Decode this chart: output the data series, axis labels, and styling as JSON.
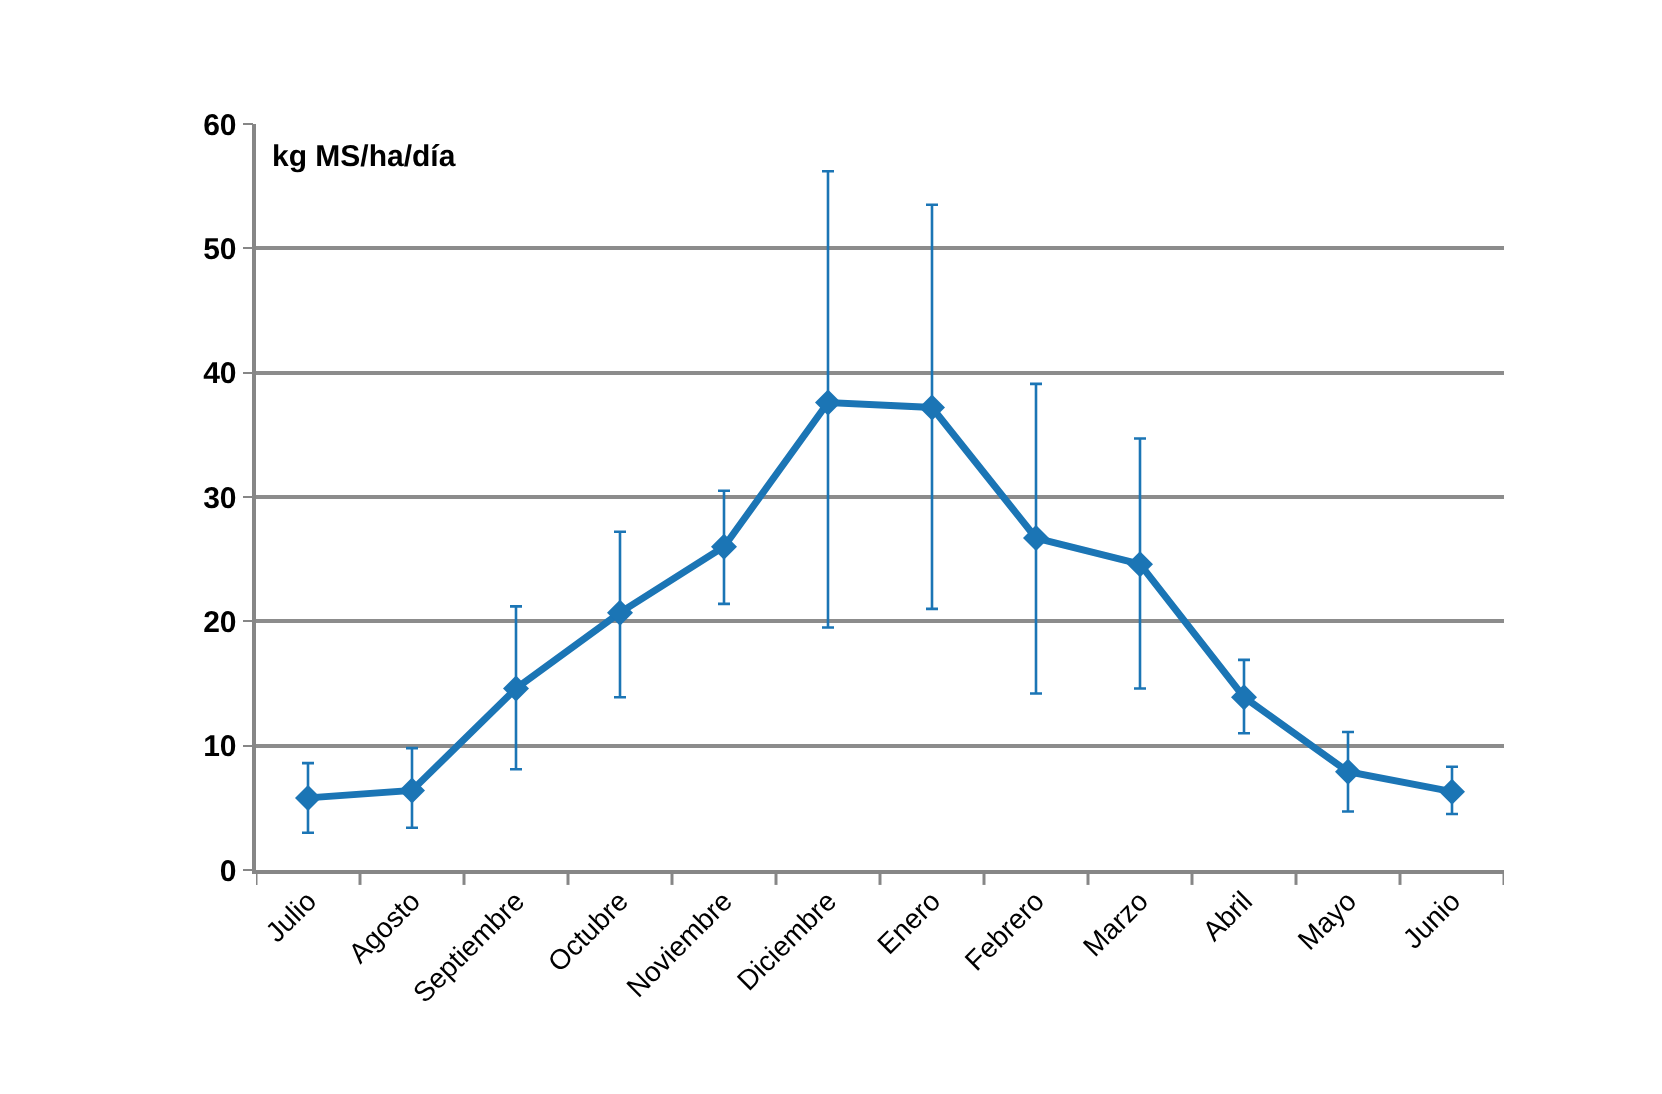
{
  "chart_data": {
    "type": "line",
    "ylabel": "kg MS/ha/día",
    "categories": [
      "Julio",
      "Agosto",
      "Septiembre",
      "Octubre",
      "Noviembre",
      "Diciembre",
      "Enero",
      "Febrero",
      "Marzo",
      "Abril",
      "Mayo",
      "Junio"
    ],
    "series": [
      {
        "color": "#1b75b5",
        "values": [
          5.8,
          6.4,
          14.6,
          20.7,
          26.0,
          37.6,
          37.2,
          26.7,
          24.6,
          13.9,
          7.9,
          6.3
        ],
        "errors": [
          [
            3.0,
            8.6
          ],
          [
            3.4,
            9.8
          ],
          [
            8.1,
            21.2
          ],
          [
            13.9,
            27.2
          ],
          [
            21.4,
            30.5
          ],
          [
            19.5,
            56.2
          ],
          [
            21.0,
            53.5
          ],
          [
            14.2,
            39.1
          ],
          [
            14.6,
            34.7
          ],
          [
            11.0,
            16.9
          ],
          [
            4.7,
            11.1
          ],
          [
            4.5,
            8.3
          ]
        ]
      }
    ],
    "ylim": [
      0,
      60
    ],
    "yticks": [
      0,
      10,
      20,
      30,
      40,
      50,
      60
    ],
    "grid": "y",
    "marker": "diamond",
    "line_style": "solid"
  }
}
